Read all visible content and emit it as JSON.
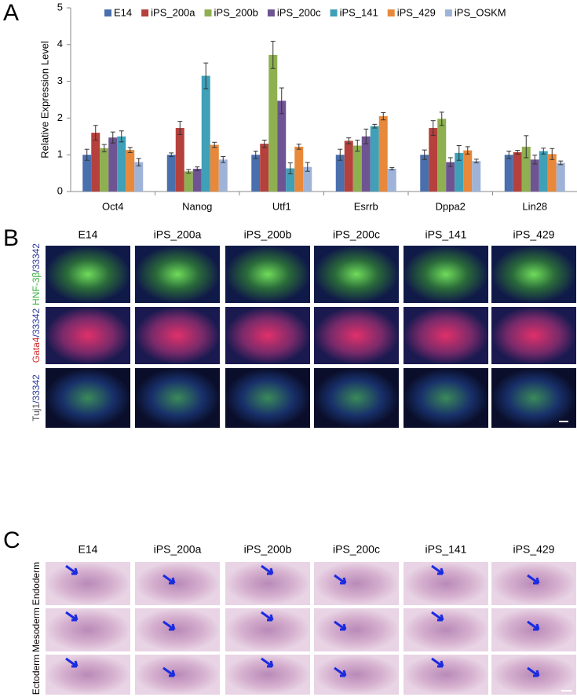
{
  "chart_data": {
    "type": "bar",
    "panel_label": "A",
    "y_label": "Relative Expression Level",
    "categories": [
      "Oct4",
      "Nanog",
      "Utf1",
      "Esrrb",
      "Dppa2",
      "Lin28"
    ],
    "series": [
      {
        "name": "E14",
        "color": "#4a6fad",
        "values": [
          1.0,
          1.0,
          1.0,
          1.0,
          1.0,
          1.0
        ],
        "errors": [
          0.15,
          0.05,
          0.1,
          0.15,
          0.13,
          0.1
        ]
      },
      {
        "name": "iPS_200a",
        "color": "#b5403c",
        "values": [
          1.6,
          1.73,
          1.3,
          1.38,
          1.73,
          1.07
        ],
        "errors": [
          0.2,
          0.18,
          0.1,
          0.08,
          0.2,
          0.05
        ]
      },
      {
        "name": "iPS_200b",
        "color": "#8fb050",
        "values": [
          1.18,
          0.55,
          3.72,
          1.25,
          1.98,
          1.22
        ],
        "errors": [
          0.1,
          0.05,
          0.37,
          0.15,
          0.18,
          0.3
        ]
      },
      {
        "name": "iPS_200c",
        "color": "#6e5493",
        "values": [
          1.47,
          0.62,
          2.47,
          1.5,
          0.8,
          0.87
        ],
        "errors": [
          0.15,
          0.05,
          0.35,
          0.2,
          0.12,
          0.12
        ]
      },
      {
        "name": "iPS_141",
        "color": "#3fa0b8",
        "values": [
          1.5,
          3.15,
          0.63,
          1.78,
          1.05,
          1.1
        ],
        "errors": [
          0.15,
          0.35,
          0.15,
          0.05,
          0.2,
          0.08
        ]
      },
      {
        "name": "iPS_429",
        "color": "#e8883a",
        "values": [
          1.13,
          1.27,
          1.22,
          2.05,
          1.12,
          1.02
        ],
        "errors": [
          0.07,
          0.07,
          0.07,
          0.1,
          0.1,
          0.15
        ]
      },
      {
        "name": "iPS_OSKM",
        "color": "#9fb3d9",
        "values": [
          0.8,
          0.87,
          0.67,
          0.62,
          0.83,
          0.78
        ],
        "errors": [
          0.1,
          0.08,
          0.12,
          0.03,
          0.05,
          0.05
        ]
      }
    ],
    "ylim": [
      0,
      5
    ],
    "yticks": [
      0,
      1,
      2,
      3,
      4,
      5
    ],
    "legend": "top"
  },
  "panel_b": {
    "label": "B",
    "columns": [
      "E14",
      "iPS_200a",
      "iPS_200b",
      "iPS_200c",
      "iPS_141",
      "iPS_429"
    ],
    "rows": [
      [
        {
          "text": "HNF-3β",
          "color": "#3cb043"
        },
        {
          "text": "/33342",
          "color": "#2a3a9a"
        }
      ],
      [
        {
          "text": "Gata4",
          "color": "#d02a2a"
        },
        {
          "text": "/33342",
          "color": "#2a3a9a"
        }
      ],
      [
        {
          "text": "Tuj1",
          "color": "#555555"
        },
        {
          "text": "/33342",
          "color": "#2a3a9a"
        }
      ]
    ]
  },
  "panel_c": {
    "label": "C",
    "columns": [
      "E14",
      "iPS_200a",
      "iPS_200b",
      "iPS_200c",
      "iPS_141",
      "iPS_429"
    ],
    "rows": [
      "Endoderm",
      "Mesoderm",
      "Ectoderm"
    ]
  }
}
